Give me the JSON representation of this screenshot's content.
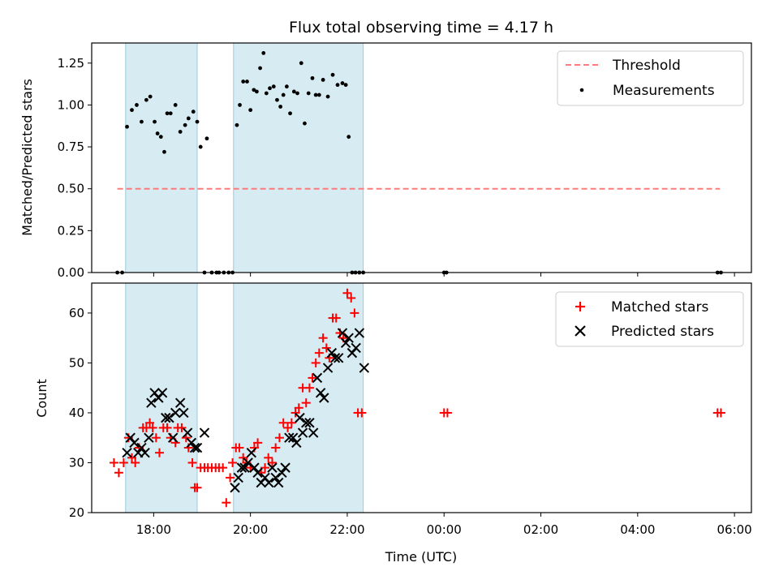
{
  "title": "Flux total observing time = 4.17 h",
  "xlabel": "Time (UTC)",
  "x_ticks": [
    "18:00",
    "20:00",
    "22:00",
    "00:00",
    "02:00",
    "04:00",
    "06:00"
  ],
  "x_tick_hours": [
    18,
    20,
    22,
    24,
    26,
    28,
    30
  ],
  "x_range_hours": [
    16.72,
    30.35
  ],
  "shaded_bands_hours": [
    [
      17.42,
      18.9
    ],
    [
      19.65,
      22.33
    ]
  ],
  "chart_data": [
    {
      "type": "scatter",
      "ylabel": "Matched/Predicted stars",
      "ylim": [
        0,
        1.37
      ],
      "y_ticks": [
        "0.00",
        "0.25",
        "0.50",
        "0.75",
        "1.00",
        "1.25"
      ],
      "y_tick_values": [
        0,
        0.25,
        0.5,
        0.75,
        1.0,
        1.25
      ],
      "legend": [
        "Threshold",
        "Measurements"
      ],
      "threshold": {
        "name": "Threshold",
        "value": 0.5,
        "x_from": 17.25,
        "x_to": 29.7,
        "color": "#ff7b7b"
      },
      "series": [
        {
          "name": "Measurements",
          "color": "#000000",
          "x": [
            17.25,
            17.35,
            17.45,
            17.55,
            17.65,
            17.75,
            17.85,
            17.93,
            18.02,
            18.08,
            18.15,
            18.22,
            18.28,
            18.35,
            18.45,
            18.55,
            18.65,
            18.72,
            18.82,
            18.9,
            18.97,
            19.05,
            19.1,
            19.2,
            19.3,
            19.35,
            19.45,
            19.55,
            19.63,
            19.72,
            19.78,
            19.85,
            19.93,
            20.0,
            20.07,
            20.13,
            20.2,
            20.27,
            20.33,
            20.4,
            20.48,
            20.55,
            20.62,
            20.68,
            20.75,
            20.82,
            20.9,
            20.97,
            21.05,
            21.12,
            21.2,
            21.28,
            21.35,
            21.42,
            21.5,
            21.6,
            21.7,
            21.8,
            21.9,
            21.97,
            22.03,
            22.1,
            22.17,
            22.25,
            22.33,
            24.0,
            24.05,
            29.65,
            29.72
          ],
          "y": [
            0,
            0,
            0.87,
            0.97,
            1.0,
            0.9,
            1.03,
            1.05,
            0.9,
            0.83,
            0.81,
            0.72,
            0.95,
            0.95,
            1.0,
            0.84,
            0.88,
            0.92,
            0.96,
            0.9,
            0.75,
            0,
            0.8,
            0,
            0,
            0,
            0,
            0,
            0,
            0.88,
            1.0,
            1.14,
            1.14,
            0.97,
            1.09,
            1.08,
            1.22,
            1.31,
            1.07,
            1.1,
            1.11,
            1.03,
            0.99,
            1.06,
            1.11,
            0.95,
            1.08,
            1.07,
            1.25,
            0.89,
            1.07,
            1.16,
            1.06,
            1.06,
            1.15,
            1.05,
            1.18,
            1.12,
            1.13,
            1.12,
            0.81,
            0,
            0,
            0,
            0,
            0,
            0,
            0,
            0
          ]
        }
      ]
    },
    {
      "type": "scatter",
      "ylabel": "Count",
      "ylim": [
        20,
        66
      ],
      "y_ticks": [
        "20",
        "30",
        "40",
        "50",
        "60"
      ],
      "y_tick_values": [
        20,
        30,
        40,
        50,
        60
      ],
      "legend": [
        "Matched stars",
        "Predicted stars"
      ],
      "series": [
        {
          "name": "Matched stars",
          "marker": "+",
          "color": "#ff0000",
          "x": [
            17.18,
            17.28,
            17.38,
            17.48,
            17.55,
            17.62,
            17.7,
            17.78,
            17.85,
            17.92,
            17.98,
            18.05,
            18.12,
            18.2,
            18.28,
            18.35,
            18.45,
            18.5,
            18.58,
            18.67,
            18.72,
            18.8,
            18.85,
            18.9,
            18.97,
            19.05,
            19.12,
            19.2,
            19.28,
            19.35,
            19.43,
            19.5,
            19.58,
            19.63,
            19.7,
            19.77,
            19.85,
            19.92,
            20.0,
            20.08,
            20.15,
            20.22,
            20.3,
            20.37,
            20.45,
            20.52,
            20.6,
            20.68,
            20.77,
            20.85,
            20.93,
            21.0,
            21.08,
            21.15,
            21.22,
            21.28,
            21.35,
            21.42,
            21.5,
            21.57,
            21.63,
            21.7,
            21.77,
            21.85,
            21.92,
            22.0,
            22.08,
            22.15,
            22.22,
            22.3,
            24.0,
            24.07,
            29.65,
            29.72
          ],
          "y": [
            30,
            28,
            30,
            35,
            31,
            30,
            33,
            37,
            37,
            38,
            37,
            35,
            32,
            37,
            37,
            35,
            34,
            37,
            37,
            35,
            33,
            30,
            25,
            25,
            29,
            29,
            29,
            29,
            29,
            29,
            29,
            22,
            27,
            30,
            33,
            33,
            31,
            30,
            29,
            33,
            34,
            28,
            29,
            31,
            30,
            33,
            35,
            38,
            37,
            38,
            40,
            41,
            45,
            42,
            45,
            47,
            50,
            52,
            55,
            53,
            51,
            59,
            59,
            56,
            55,
            64,
            63,
            60,
            40,
            40,
            40,
            40,
            40,
            40
          ]
        },
        {
          "name": "Predicted stars",
          "marker": "x",
          "color": "#000000",
          "x": [
            17.45,
            17.52,
            17.6,
            17.68,
            17.75,
            17.82,
            17.9,
            17.95,
            18.02,
            18.1,
            18.18,
            18.25,
            18.32,
            18.4,
            18.45,
            18.55,
            18.62,
            18.7,
            18.78,
            18.85,
            18.9,
            19.05,
            19.68,
            19.75,
            19.82,
            19.88,
            19.95,
            20.02,
            20.08,
            20.15,
            20.22,
            20.3,
            20.38,
            20.45,
            20.52,
            20.58,
            20.65,
            20.72,
            20.8,
            20.88,
            20.95,
            21.02,
            21.08,
            21.15,
            21.22,
            21.3,
            21.38,
            21.45,
            21.52,
            21.6,
            21.68,
            21.75,
            21.82,
            21.9,
            21.97,
            22.03,
            22.1,
            22.18,
            22.25,
            22.35
          ],
          "y": [
            32,
            35,
            34,
            32,
            33,
            32,
            35,
            42,
            44,
            43,
            44,
            39,
            39,
            35,
            40,
            42,
            40,
            36,
            34,
            33,
            33,
            36,
            25,
            27,
            29,
            29,
            30,
            32,
            29,
            28,
            26,
            27,
            26,
            29,
            27,
            26,
            28,
            29,
            35,
            35,
            34,
            39,
            36,
            38,
            38,
            36,
            47,
            44,
            43,
            49,
            52,
            51,
            51,
            56,
            54,
            55,
            52,
            53,
            56,
            49
          ]
        }
      ]
    }
  ]
}
